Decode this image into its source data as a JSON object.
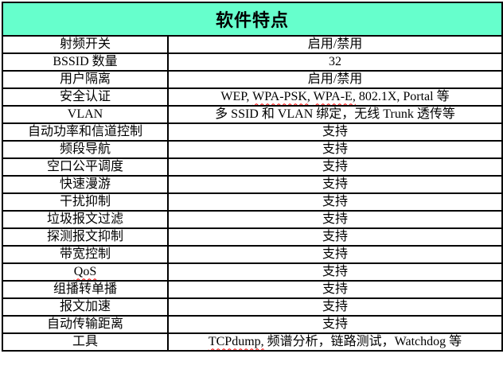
{
  "table": {
    "title": "软件特点",
    "header_bg": "#66FFCC",
    "border_color": "#000000",
    "spellcheck_color": "#ff0000",
    "columns": [
      "feature",
      "value"
    ],
    "rows": [
      {
        "feature": "射频开关",
        "value": "启用/禁用"
      },
      {
        "feature": "BSSID 数量",
        "value": "32"
      },
      {
        "feature": "用户隔离",
        "value": "启用/禁用"
      },
      {
        "feature": "安全认证",
        "value": "WEP, WPA-PSK, WPA-E, 802.1X, Portal 等",
        "misspelled": [
          "WPA-PSK,",
          "WPA-E,"
        ]
      },
      {
        "feature": "VLAN",
        "value": "多 SSID 和 VLAN 绑定，无线 Trunk 透传等"
      },
      {
        "feature": "自动功率和信道控制",
        "value": "支持"
      },
      {
        "feature": "频段导航",
        "value": "支持"
      },
      {
        "feature": "空口公平调度",
        "value": "支持"
      },
      {
        "feature": "快速漫游",
        "value": "支持"
      },
      {
        "feature": "干扰抑制",
        "value": "支持"
      },
      {
        "feature": "垃圾报文过滤",
        "value": "支持"
      },
      {
        "feature": "探测报文抑制",
        "value": "支持"
      },
      {
        "feature": "带宽控制",
        "value": "支持"
      },
      {
        "feature": "QoS",
        "value": "支持",
        "misspelled": [
          "QoS"
        ]
      },
      {
        "feature": "组播转单播",
        "value": "支持"
      },
      {
        "feature": "报文加速",
        "value": "支持"
      },
      {
        "feature": "自动传输距离",
        "value": "支持"
      },
      {
        "feature": "工具",
        "value": "TCPdump, 频谱分析，链路测试，Watchdog 等",
        "misspelled": [
          "TCPdump,"
        ]
      }
    ]
  }
}
